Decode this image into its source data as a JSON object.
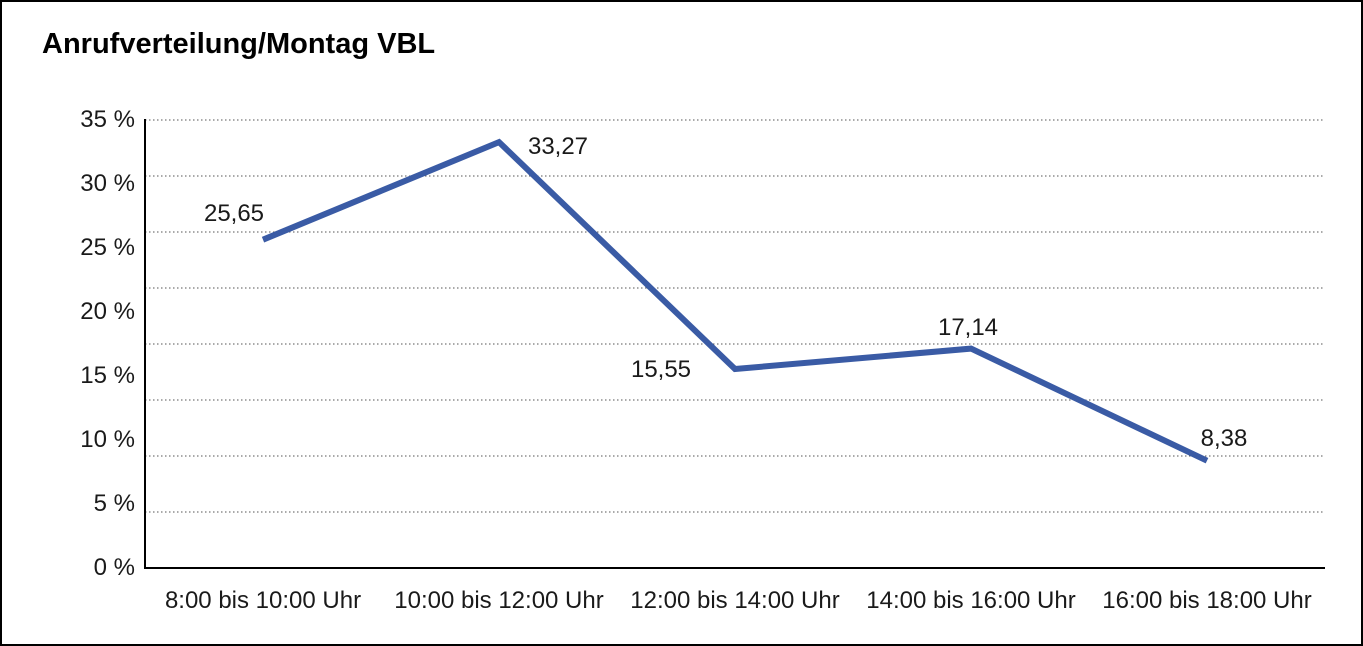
{
  "title": "Anrufverteilung/Montag VBL",
  "chart_data": {
    "type": "line",
    "title": "Anrufverteilung/Montag VBL",
    "categories": [
      "8:00 bis 10:00 Uhr",
      "10:00 bis 12:00 Uhr",
      "12:00 bis 14:00 Uhr",
      "14:00 bis 16:00 Uhr",
      "16:00 bis 18:00 Uhr"
    ],
    "series": [
      {
        "values": [
          25.65,
          33.27,
          15.55,
          17.14,
          8.38
        ],
        "point_labels": [
          "25,65",
          "33,27",
          "15,55",
          "17,14",
          "8,38"
        ],
        "color": "#3A5BA5"
      }
    ],
    "xlabel": "",
    "ylabel": "",
    "ylim": [
      0,
      35
    ],
    "y_ticks": [
      "35 %",
      "30 %",
      "25 %",
      "20 %",
      "15 %",
      "10 %",
      "5 %",
      "0 %"
    ],
    "grid": "horizontal-dotted",
    "gridline_color": "#555555",
    "axis_color": "#000000",
    "text_color": "#1a1a1a",
    "legend": false,
    "line_width": 6
  }
}
